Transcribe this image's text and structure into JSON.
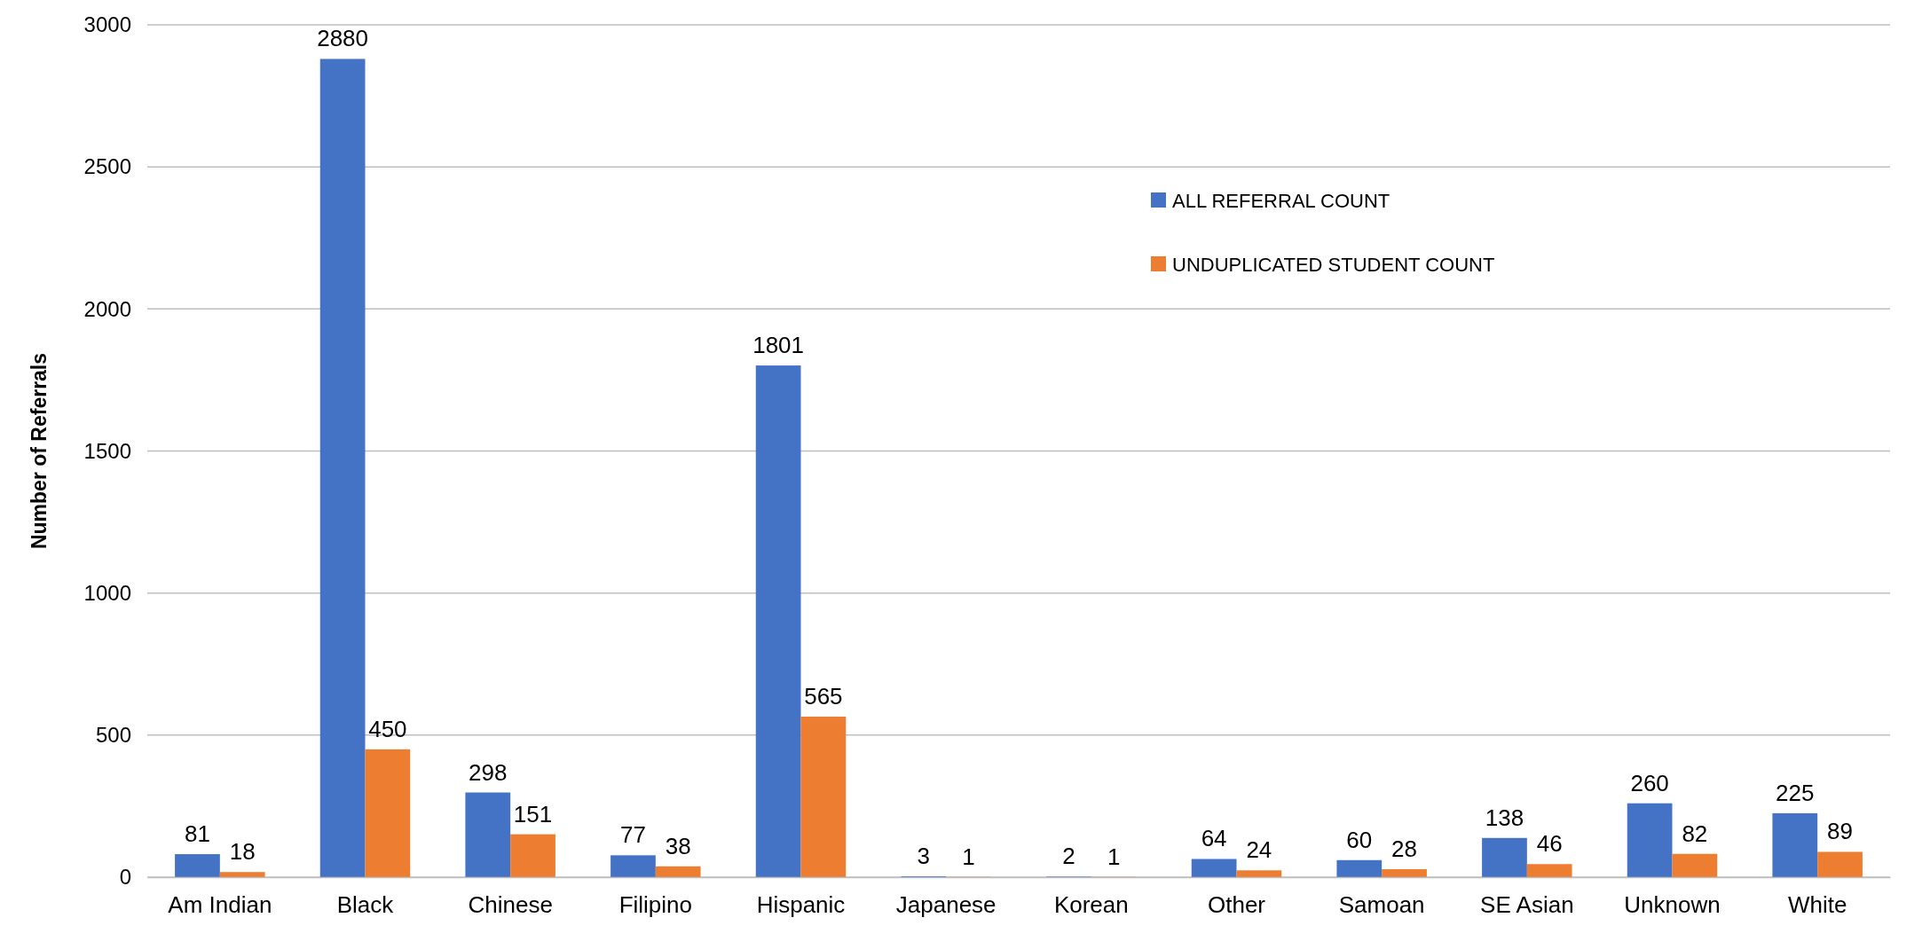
{
  "chart_data": {
    "type": "bar",
    "ylabel": "Number of Referrals",
    "categories": [
      "Am Indian",
      "Black",
      "Chinese",
      "Filipino",
      "Hispanic",
      "Japanese",
      "Korean",
      "Other",
      "Samoan",
      "SE Asian",
      "Unknown",
      "White"
    ],
    "series": [
      {
        "name": "ALL REFERRAL COUNT",
        "color": "#4472c4",
        "values": [
          81,
          2880,
          298,
          77,
          1801,
          3,
          2,
          64,
          60,
          138,
          260,
          225
        ]
      },
      {
        "name": "UNDUPLICATED STUDENT COUNT",
        "color": "#ed7d31",
        "values": [
          18,
          450,
          151,
          38,
          565,
          1,
          1,
          24,
          28,
          46,
          82,
          89
        ]
      }
    ],
    "ylim": [
      0,
      3000
    ],
    "yticks": [
      0,
      500,
      1000,
      1500,
      2000,
      2500,
      3000
    ],
    "grid": "y",
    "legend": "top right",
    "data_labels": true
  }
}
